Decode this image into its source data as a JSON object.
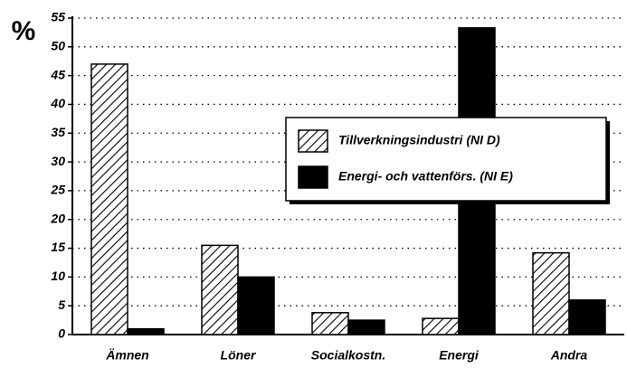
{
  "chart_data": {
    "type": "bar",
    "y_unit_label": "%",
    "categories": [
      "Ämnen",
      "Löner",
      "Socialkostn.",
      "Energi",
      "Andra"
    ],
    "series": [
      {
        "name": "Tillverkningsindustri (NI D)",
        "color": "#000000",
        "pattern": "hatch",
        "values": [
          47,
          15.5,
          3.8,
          2.8,
          14.2
        ]
      },
      {
        "name": "Energi- och vattenförs. (NI E)",
        "color": "#000000",
        "pattern": "solid",
        "values": [
          1,
          10,
          2.5,
          53.3,
          6
        ]
      }
    ],
    "ylim": [
      0,
      55
    ],
    "yticks": [
      0,
      5,
      10,
      15,
      20,
      25,
      30,
      35,
      40,
      45,
      50,
      55
    ],
    "grid": true,
    "legend": "right"
  }
}
